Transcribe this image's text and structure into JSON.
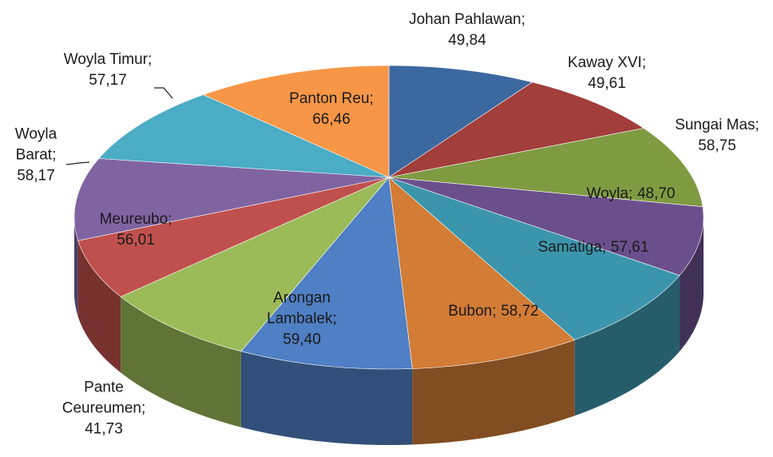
{
  "chart_data": {
    "type": "pie3d",
    "label_separator": ";",
    "categories": [
      "Johan Pahlawan",
      "Kaway XVI",
      "Sungai Mas",
      "Woyla",
      "Samatiga",
      "Bubon",
      "Arongan Lambalek",
      "Meureubo",
      "Pante Ceureumen",
      "Woyla Barat",
      "Woyla Timur",
      "Panton Reu"
    ],
    "values": [
      49.84,
      49.61,
      58.75,
      48.7,
      57.61,
      58.72,
      59.4,
      56.01,
      41.73,
      58.17,
      57.17,
      66.46
    ],
    "value_labels": [
      "49,84",
      "49,61",
      "58,75",
      "48,70",
      "57,61",
      "58,72",
      "59,40",
      "56,01",
      "41,73",
      "58,17",
      "57,17",
      "66,46"
    ],
    "colors": [
      "#3c68a0",
      "#a23e3b",
      "#7f9b42",
      "#6b4f8c",
      "#3b96ad",
      "#d27c36",
      "#4f7fc4",
      "#9bbb59",
      "#c0504d",
      "#8064a2",
      "#4bacc6",
      "#f79646"
    ]
  }
}
